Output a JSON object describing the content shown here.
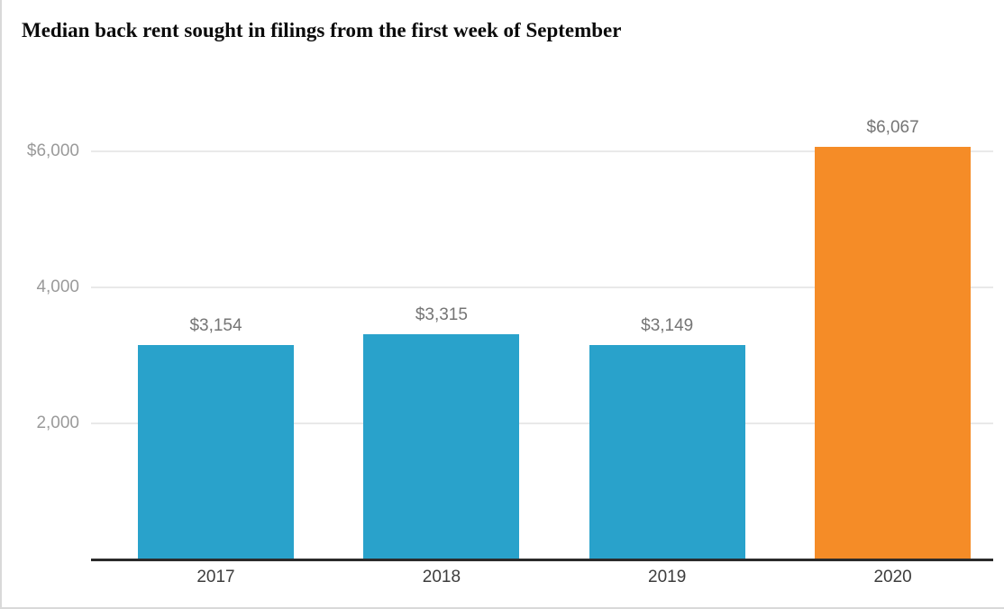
{
  "title": "Median back rent sought in filings from the first week of September",
  "chart_data": {
    "type": "bar",
    "title": "Median back rent sought in filings from the first week of September",
    "categories": [
      "2017",
      "2018",
      "2019",
      "2020"
    ],
    "values": [
      3154,
      3315,
      3149,
      6067
    ],
    "value_labels": [
      "$3,154",
      "$3,315",
      "$3,149",
      "$6,067"
    ],
    "xlabel": "",
    "ylabel": "",
    "ylim": [
      0,
      6600
    ],
    "yticks": [
      {
        "value": 2000,
        "label": "2,000"
      },
      {
        "value": 4000,
        "label": "4,000"
      },
      {
        "value": 6000,
        "label": "$6,000"
      }
    ],
    "grid": "horizontal-only",
    "legend": "none",
    "bar_colors": [
      "#29a2cb",
      "#29a2cb",
      "#29a2cb",
      "#f58c27"
    ],
    "colors": {
      "bar_blue": "#29a2cb",
      "bar_orange": "#f58c27",
      "gridline": "#e9e9e9",
      "axis_line": "#2b2b2b",
      "ytick_text": "#9a9a9a",
      "xtick_text": "#3d3d3d",
      "value_label_text": "#757575",
      "title_text": "#0b0b0b",
      "frame_border": "#d9d9d9"
    }
  }
}
